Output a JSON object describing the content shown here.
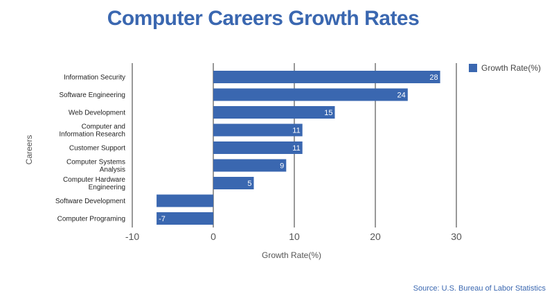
{
  "chart_data": {
    "type": "bar",
    "orientation": "horizontal",
    "title": "Computer Careers Growth Rates",
    "xlabel": "Growth Rate(%)",
    "ylabel": "Careers",
    "xlim": [
      -10,
      30
    ],
    "xticks": [
      "-10",
      "0",
      "10",
      "20",
      "30"
    ],
    "categories": [
      [
        "Information Security"
      ],
      [
        "Software Engineering"
      ],
      [
        "Web Development"
      ],
      [
        "Computer and",
        "Information Research"
      ],
      [
        "Customer Support"
      ],
      [
        "Computer Systems",
        "Analysis"
      ],
      [
        "Computer Hardware",
        "Engineering"
      ],
      [
        "Software Development"
      ],
      [
        "Computer Programing"
      ]
    ],
    "series": [
      {
        "name": "Growth Rate(%)",
        "values": [
          28,
          24,
          15,
          11,
          11,
          9,
          5,
          -7,
          -7
        ],
        "labels": [
          "28",
          "24",
          "15",
          "11",
          "11",
          "9",
          "5",
          "",
          "-7"
        ]
      }
    ],
    "legend_position": "top-right",
    "grid": "vertical",
    "bar_color": "#3a67b0",
    "source": "Source: U.S. Bureau of Labor Statistics"
  }
}
